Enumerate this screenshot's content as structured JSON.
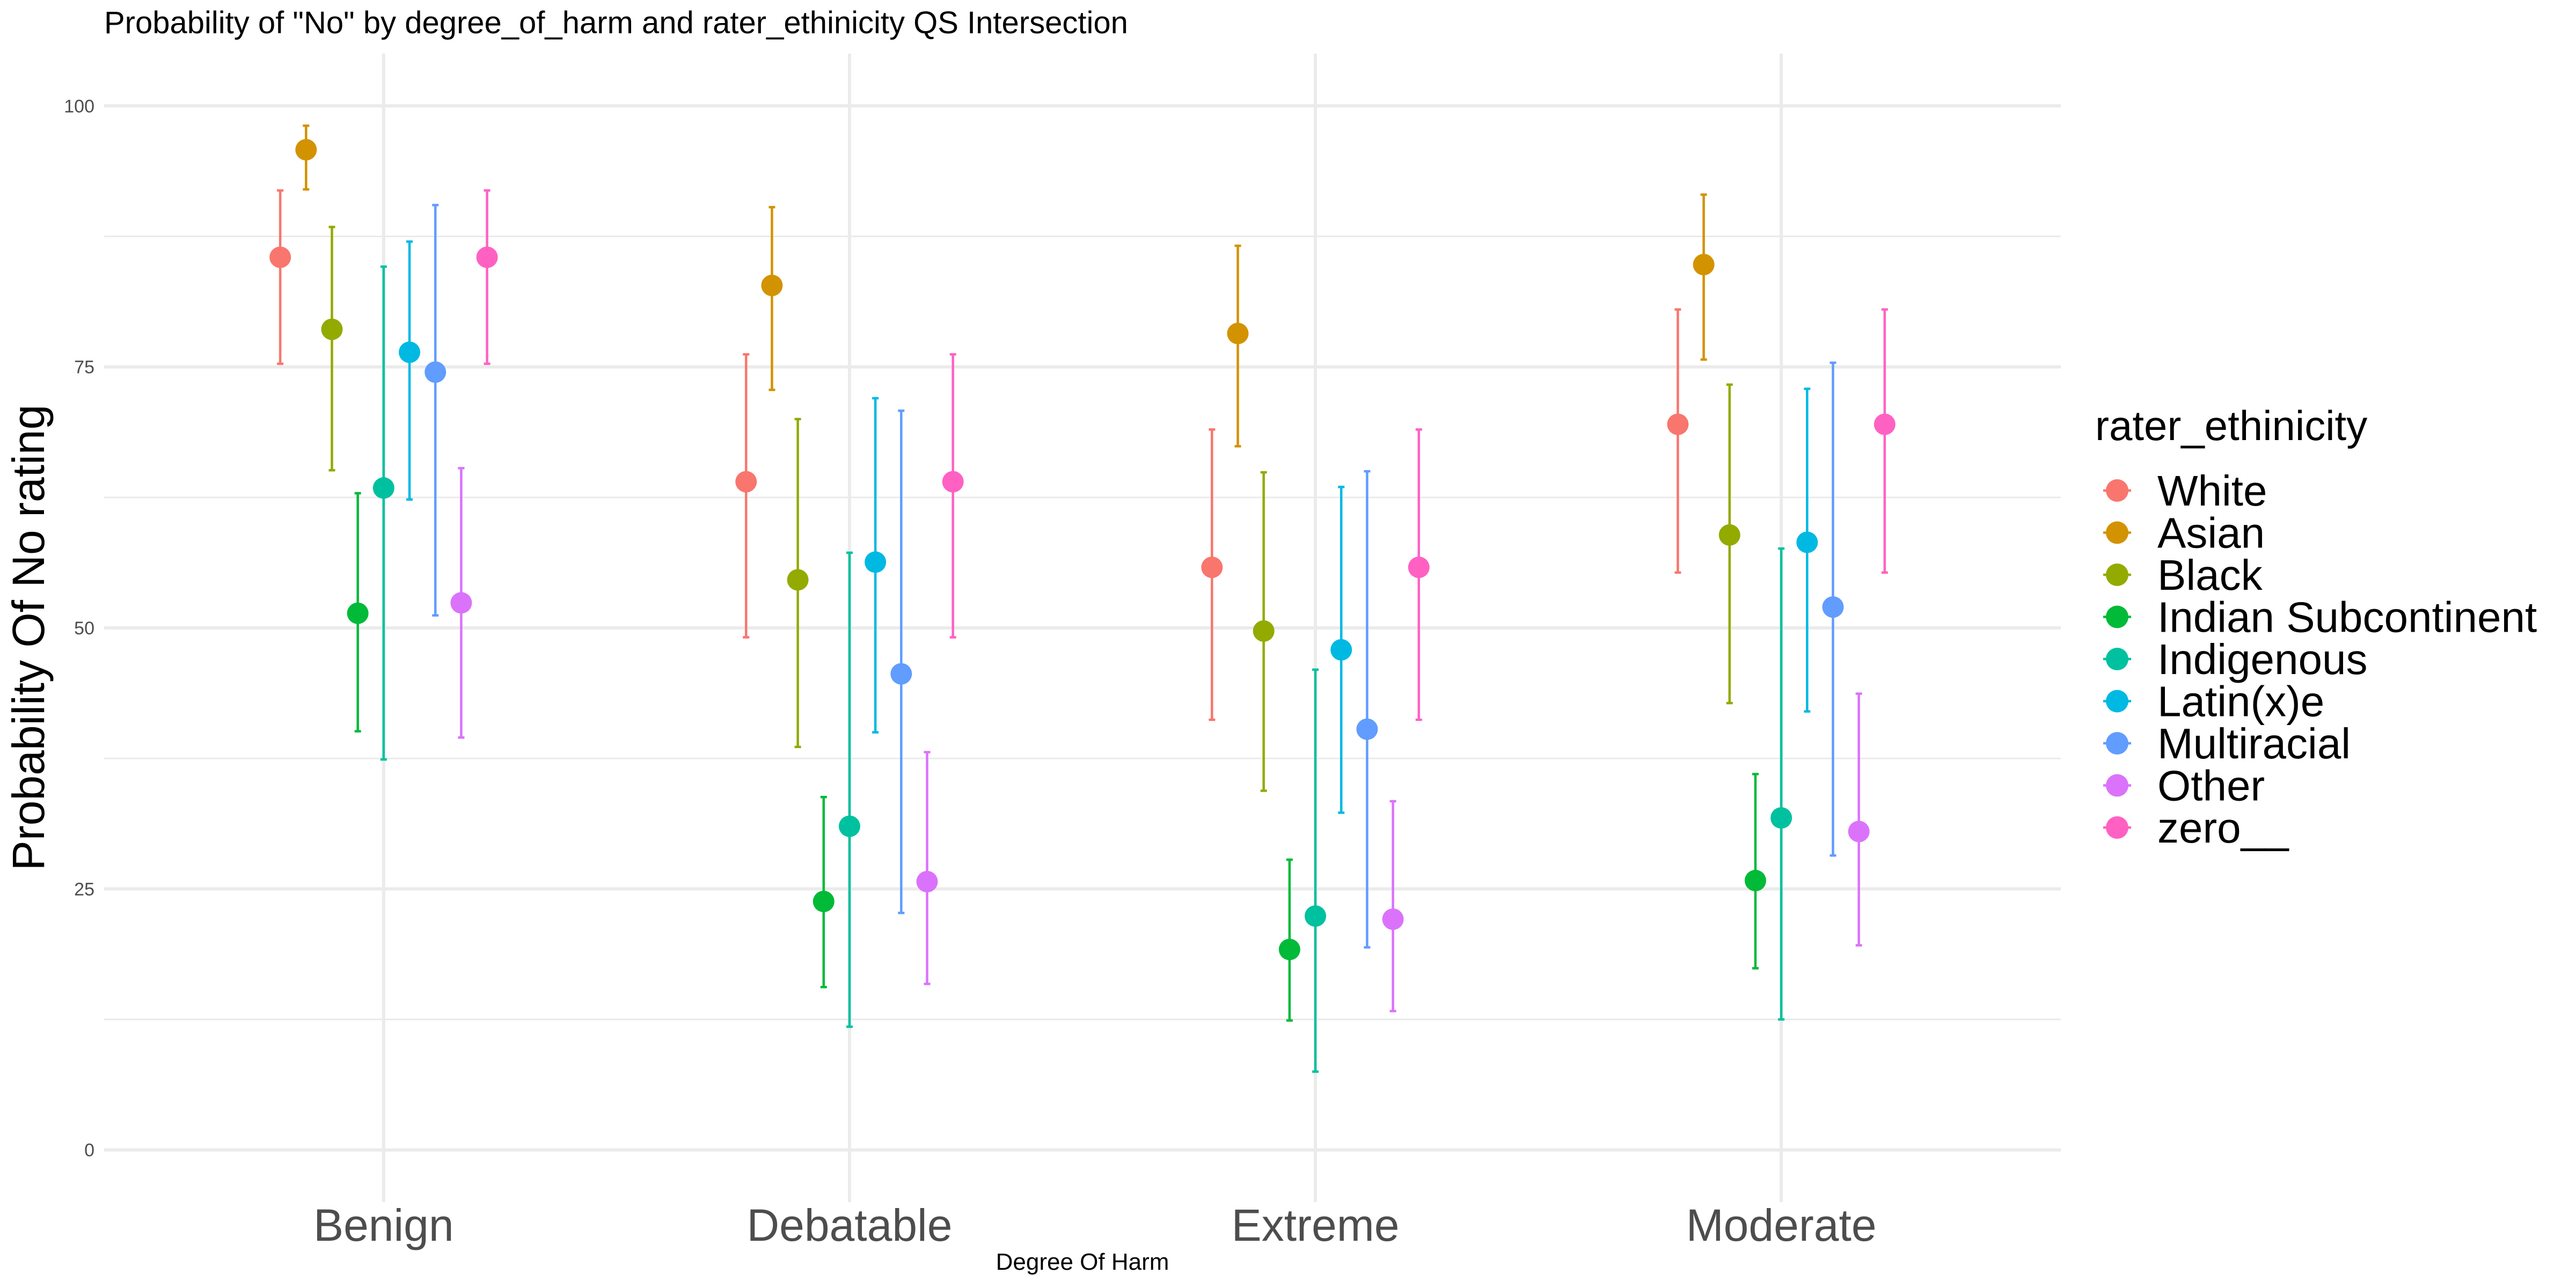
{
  "chart_data": {
    "type": "scatter",
    "title": "Probability of \"No\" by degree_of_harm and  rater_ethinicity  QS Intersection",
    "xlabel": "Degree Of Harm",
    "ylabel": "Probability Of No rating",
    "ylim": [
      -5,
      105
    ],
    "yticks": [
      0,
      25,
      50,
      75,
      100
    ],
    "grid": true,
    "legend": {
      "title": "rater_ethinicity",
      "position": "right"
    },
    "categories": [
      "Benign",
      "Debatable",
      "Extreme",
      "Moderate"
    ],
    "series": [
      {
        "name": "White",
        "color": "#F8766D",
        "values": [
          85.5,
          64.0,
          55.8,
          69.5
        ],
        "lower": [
          75.3,
          49.1,
          41.2,
          55.3
        ],
        "upper": [
          91.9,
          76.2,
          69.0,
          80.5
        ]
      },
      {
        "name": "Asian",
        "color": "#D39200",
        "values": [
          95.8,
          82.8,
          78.2,
          84.8
        ],
        "lower": [
          92.0,
          72.8,
          67.4,
          75.7
        ],
        "upper": [
          98.1,
          90.3,
          86.6,
          91.5
        ]
      },
      {
        "name": "Black",
        "color": "#93AA00",
        "values": [
          78.6,
          54.6,
          49.7,
          58.9
        ],
        "lower": [
          65.1,
          38.6,
          34.4,
          42.8
        ],
        "upper": [
          88.4,
          70.0,
          64.9,
          73.3
        ]
      },
      {
        "name": "Indian Subcontinent",
        "color": "#00BA38",
        "values": [
          51.4,
          23.8,
          19.2,
          25.8
        ],
        "lower": [
          40.1,
          15.6,
          12.4,
          17.4
        ],
        "upper": [
          62.9,
          33.8,
          27.8,
          36.0
        ]
      },
      {
        "name": "Indigenous",
        "color": "#00C19F",
        "values": [
          63.4,
          31.0,
          22.4,
          31.8
        ],
        "lower": [
          37.4,
          11.8,
          7.5,
          12.5
        ],
        "upper": [
          84.6,
          57.2,
          46.0,
          57.6
        ]
      },
      {
        "name": "Latin(x)e",
        "color": "#00B9E3",
        "values": [
          76.4,
          56.3,
          47.9,
          58.2
        ],
        "lower": [
          62.3,
          40.0,
          32.3,
          42.0
        ],
        "upper": [
          87.0,
          72.0,
          63.5,
          72.9
        ]
      },
      {
        "name": "Multiracial",
        "color": "#619CFF",
        "values": [
          74.5,
          45.6,
          40.3,
          52.0
        ],
        "lower": [
          51.2,
          22.7,
          19.4,
          28.2
        ],
        "upper": [
          90.5,
          70.8,
          65.0,
          75.4
        ]
      },
      {
        "name": "Other",
        "color": "#DB72FB",
        "values": [
          52.4,
          25.7,
          22.1,
          30.5
        ],
        "lower": [
          39.5,
          15.9,
          13.3,
          19.6
        ],
        "upper": [
          65.3,
          38.1,
          33.4,
          43.7
        ]
      },
      {
        "name": "zero__",
        "color": "#FF61C3",
        "values": [
          85.5,
          64.0,
          55.8,
          69.5
        ],
        "lower": [
          75.3,
          49.1,
          41.2,
          55.3
        ],
        "upper": [
          91.9,
          76.2,
          69.0,
          80.5
        ]
      }
    ]
  }
}
